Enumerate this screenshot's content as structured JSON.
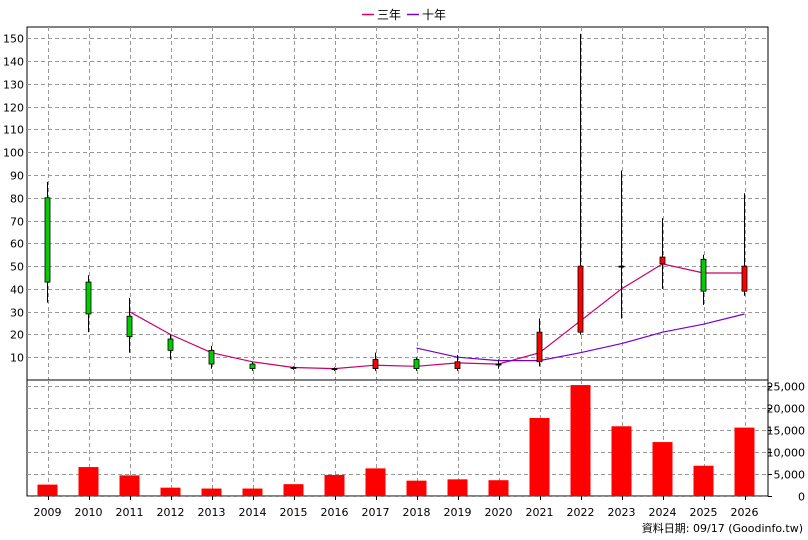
{
  "chart_data": [
    {
      "type": "candlestick",
      "title": "",
      "legend": {
        "placement": "top-center",
        "items": [
          {
            "name": "三年",
            "color": "#cc0066"
          },
          {
            "name": "十年",
            "color": "#7700cc"
          }
        ]
      },
      "x": [
        "2009",
        "2010",
        "2011",
        "2012",
        "2013",
        "2014",
        "2015",
        "2016",
        "2017",
        "2018",
        "2019",
        "2020",
        "2021",
        "2022",
        "2023",
        "2024",
        "2025",
        "2026"
      ],
      "ylim": [
        0,
        155
      ],
      "yticks": [
        10,
        20,
        30,
        40,
        50,
        60,
        70,
        80,
        90,
        100,
        110,
        120,
        130,
        140,
        150
      ],
      "grid": true,
      "up_color": "#ff0000",
      "down_color": "#00cc00",
      "candles": [
        {
          "year": "2009",
          "open": 80,
          "close": 43,
          "high": 87,
          "low": 34
        },
        {
          "year": "2010",
          "open": 43,
          "close": 29,
          "high": 46,
          "low": 21
        },
        {
          "year": "2011",
          "open": 28,
          "close": 19,
          "high": 36,
          "low": 12
        },
        {
          "year": "2012",
          "open": 18,
          "close": 13,
          "high": 20,
          "low": 9
        },
        {
          "year": "2013",
          "open": 13,
          "close": 7,
          "high": 15,
          "low": 5
        },
        {
          "year": "2014",
          "open": 7,
          "close": 5,
          "high": 8,
          "low": 4
        },
        {
          "year": "2015",
          "open": 5.5,
          "close": 5.5,
          "high": 6,
          "low": 4.5
        },
        {
          "year": "2016",
          "open": 5,
          "close": 5,
          "high": 5.5,
          "low": 4
        },
        {
          "year": "2017",
          "open": 5,
          "close": 9,
          "high": 12,
          "low": 4
        },
        {
          "year": "2018",
          "open": 9,
          "close": 5,
          "high": 10,
          "low": 4
        },
        {
          "year": "2019",
          "open": 5,
          "close": 8,
          "high": 11,
          "low": 4
        },
        {
          "year": "2020",
          "open": 7,
          "close": 7,
          "high": 9,
          "low": 5
        },
        {
          "year": "2021",
          "open": 8,
          "close": 21,
          "high": 27,
          "low": 6
        },
        {
          "year": "2022",
          "open": 21,
          "close": 50,
          "high": 152,
          "low": 20
        },
        {
          "year": "2023",
          "open": 50,
          "close": 50,
          "high": 92,
          "low": 27
        },
        {
          "year": "2024",
          "open": 51,
          "close": 54,
          "high": 71,
          "low": 40
        },
        {
          "year": "2025",
          "open": 53,
          "close": 39,
          "high": 55,
          "low": 33
        },
        {
          "year": "2026",
          "open": 39,
          "close": 50,
          "high": 82,
          "low": 37
        }
      ],
      "series": [
        {
          "name": "三年",
          "color": "#cc0066",
          "values": [
            null,
            null,
            30,
            20,
            12,
            8,
            5.5,
            5,
            6.5,
            6,
            7.5,
            7,
            12,
            26,
            40,
            51,
            47,
            47
          ]
        },
        {
          "name": "十年",
          "color": "#7700cc",
          "values": [
            null,
            null,
            null,
            null,
            null,
            null,
            null,
            null,
            null,
            14,
            10,
            8.5,
            8.5,
            12,
            16,
            21,
            24.5,
            29
          ]
        }
      ]
    },
    {
      "type": "bar",
      "x": [
        "2009",
        "2010",
        "2011",
        "2012",
        "2013",
        "2014",
        "2015",
        "2016",
        "2017",
        "2018",
        "2019",
        "2020",
        "2021",
        "2022",
        "2023",
        "2024",
        "2025",
        "2026"
      ],
      "values": [
        2600,
        6600,
        4700,
        1900,
        1700,
        1700,
        2700,
        4800,
        6300,
        3500,
        3800,
        3600,
        17800,
        25300,
        15900,
        12300,
        6900,
        15600
      ],
      "ylim": [
        0,
        26000
      ],
      "yticks": [
        0,
        5000,
        10000,
        15000,
        20000,
        25000
      ],
      "ytick_labels": [
        "0",
        "5,000",
        "10,000",
        "15,000",
        "20,000",
        "25,000"
      ],
      "color": "#ff0000"
    }
  ],
  "footer": {
    "source_label": "資料日期: 09/17  (Goodinfo.tw)"
  }
}
